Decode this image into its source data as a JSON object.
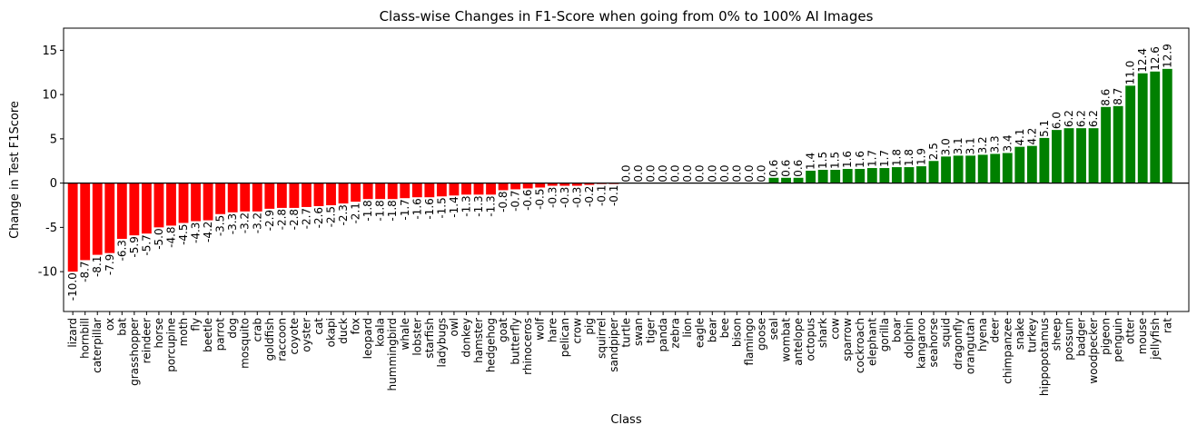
{
  "chart_data": {
    "type": "bar",
    "title": "Class-wise Changes in F1-Score when going from 0% to 100% AI Images",
    "xlabel": "Class",
    "ylabel": "Change in Test F1Score",
    "ylim": [
      -14.5,
      17.5
    ],
    "yticks": [
      -10,
      -5,
      0,
      5,
      10,
      15
    ],
    "grid": false,
    "colors": {
      "negative": "#ff0000",
      "positive": "#008000",
      "zero_line": "#000000"
    },
    "categories": [
      "lizard",
      "hornbill",
      "caterpillar",
      "ox",
      "bat",
      "grasshopper",
      "reindeer",
      "horse",
      "porcupine",
      "moth",
      "fly",
      "beetle",
      "parrot",
      "dog",
      "mosquito",
      "crab",
      "goldfish",
      "raccoon",
      "coyote",
      "oyster",
      "cat",
      "okapi",
      "duck",
      "fox",
      "leopard",
      "koala",
      "hummingbird",
      "whale",
      "lobster",
      "starfish",
      "ladybugs",
      "owl",
      "donkey",
      "hamster",
      "hedgehog",
      "goat",
      "butterfly",
      "rhinoceros",
      "wolf",
      "hare",
      "pelican",
      "crow",
      "pig",
      "squirrel",
      "sandpiper",
      "turtle",
      "swan",
      "tiger",
      "panda",
      "zebra",
      "lion",
      "eagle",
      "bear",
      "bee",
      "bison",
      "flamingo",
      "goose",
      "seal",
      "wombat",
      "antelope",
      "octopus",
      "shark",
      "cow",
      "sparrow",
      "cockroach",
      "elephant",
      "gorilla",
      "boar",
      "dolphin",
      "kangaroo",
      "seahorse",
      "squid",
      "dragonfly",
      "orangutan",
      "hyena",
      "deer",
      "chimpanzee",
      "snake",
      "turkey",
      "hippopotamus",
      "sheep",
      "possum",
      "badger",
      "woodpecker",
      "pigeon",
      "penguin",
      "otter",
      "mouse",
      "jellyfish",
      "rat"
    ],
    "values": [
      -10.0,
      -8.7,
      -8.1,
      -7.9,
      -6.3,
      -5.9,
      -5.7,
      -5.0,
      -4.8,
      -4.5,
      -4.3,
      -4.2,
      -3.5,
      -3.3,
      -3.2,
      -3.2,
      -2.9,
      -2.8,
      -2.8,
      -2.7,
      -2.6,
      -2.5,
      -2.3,
      -2.1,
      -1.8,
      -1.8,
      -1.8,
      -1.7,
      -1.6,
      -1.6,
      -1.5,
      -1.4,
      -1.3,
      -1.3,
      -1.3,
      -0.8,
      -0.7,
      -0.6,
      -0.5,
      -0.3,
      -0.3,
      -0.3,
      -0.2,
      -0.1,
      -0.1,
      0.0,
      0.0,
      0.0,
      0.0,
      0.0,
      0.0,
      0.0,
      0.0,
      0.0,
      0.0,
      0.0,
      0.0,
      0.6,
      0.6,
      0.6,
      1.4,
      1.5,
      1.5,
      1.6,
      1.6,
      1.7,
      1.7,
      1.8,
      1.8,
      1.9,
      2.5,
      3.0,
      3.1,
      3.1,
      3.2,
      3.3,
      3.4,
      4.1,
      4.2,
      5.1,
      6.0,
      6.2,
      6.2,
      6.2,
      8.6,
      8.7,
      11.0,
      12.4,
      12.6,
      12.9
    ],
    "value_labels": [
      "-10.0",
      "-8.7",
      "-8.1",
      "-7.9",
      "-6.3",
      "-5.9",
      "-5.7",
      "-5.0",
      "-4.8",
      "-4.5",
      "-4.3",
      "-4.2",
      "-3.5",
      "-3.3",
      "-3.2",
      "-3.2",
      "-2.9",
      "-2.8",
      "-2.8",
      "-2.7",
      "-2.6",
      "-2.5",
      "-2.3",
      "-2.1",
      "-1.8",
      "-1.8",
      "-1.8",
      "-1.7",
      "-1.6",
      "-1.6",
      "-1.5",
      "-1.4",
      "-1.3",
      "-1.3",
      "-1.3",
      "-0.8",
      "-0.7",
      "-0.6",
      "-0.5",
      "-0.3",
      "-0.3",
      "-0.3",
      "-0.2",
      "-0.1",
      "-0.1",
      "0.0",
      "0.0",
      "0.0",
      "0.0",
      "0.0",
      "0.0",
      "0.0",
      "0.0",
      "0.0",
      "0.0",
      "0.0",
      "0.0",
      "0.6",
      "0.6",
      "0.6",
      "1.4",
      "1.5",
      "1.5",
      "1.6",
      "1.6",
      "1.7",
      "1.7",
      "1.8",
      "1.8",
      "1.9",
      "2.5",
      "3.0",
      "3.1",
      "3.1",
      "3.2",
      "3.3",
      "3.4",
      "4.1",
      "4.2",
      "5.1",
      "6.0",
      "6.2",
      "6.2",
      "6.2",
      "8.6",
      "8.7",
      "11.0",
      "12.4",
      "12.6",
      "12.9"
    ]
  }
}
